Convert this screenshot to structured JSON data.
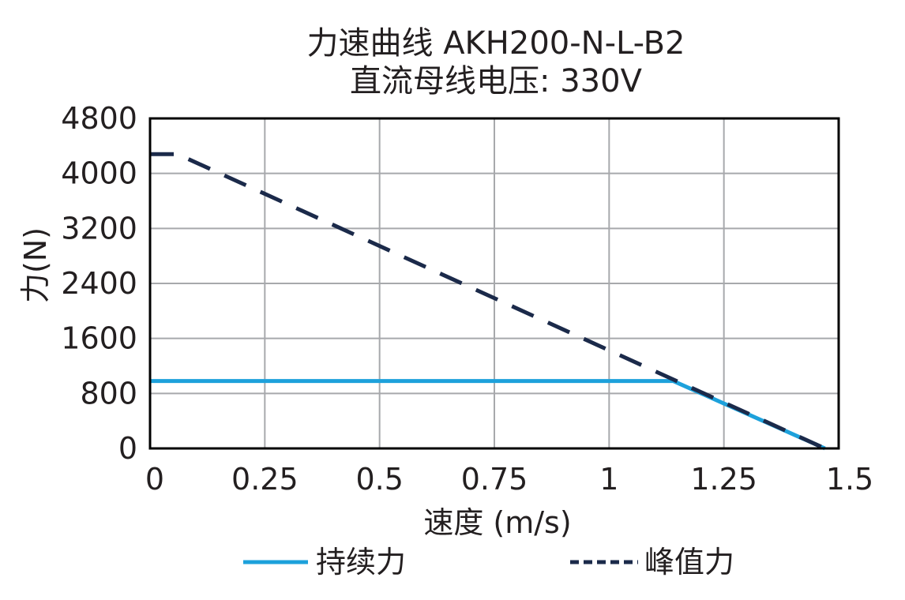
{
  "chart_data": {
    "type": "line",
    "title": "力速曲线 AKH200-N-L-B2",
    "subtitle": "直流母线电压: 330V",
    "xlabel": "速度 (m/s)",
    "ylabel": "力(N)",
    "xlim": [
      0,
      1.5
    ],
    "ylim": [
      0,
      4800
    ],
    "x_ticks": [
      0,
      0.25,
      0.5,
      0.75,
      1,
      1.25,
      1.5
    ],
    "x_tick_labels": [
      "0",
      "0.25",
      "0.5",
      "0.75",
      "1",
      "1.25",
      "1.5"
    ],
    "y_ticks": [
      0,
      800,
      1600,
      2400,
      3200,
      4000,
      4800
    ],
    "y_tick_labels": [
      "0",
      "800",
      "1600",
      "2400",
      "3200",
      "4000",
      "4800"
    ],
    "grid": true,
    "legend_position": "bottom",
    "series": [
      {
        "name": "持续力",
        "style": "solid",
        "color": "#1da1db",
        "x": [
          0,
          1.14,
          1.47
        ],
        "y": [
          980,
          980,
          0
        ]
      },
      {
        "name": "峰值力",
        "style": "dashed",
        "color": "#1b2a4a",
        "x": [
          0,
          0.06,
          1.47
        ],
        "y": [
          4280,
          4280,
          0
        ]
      }
    ]
  }
}
